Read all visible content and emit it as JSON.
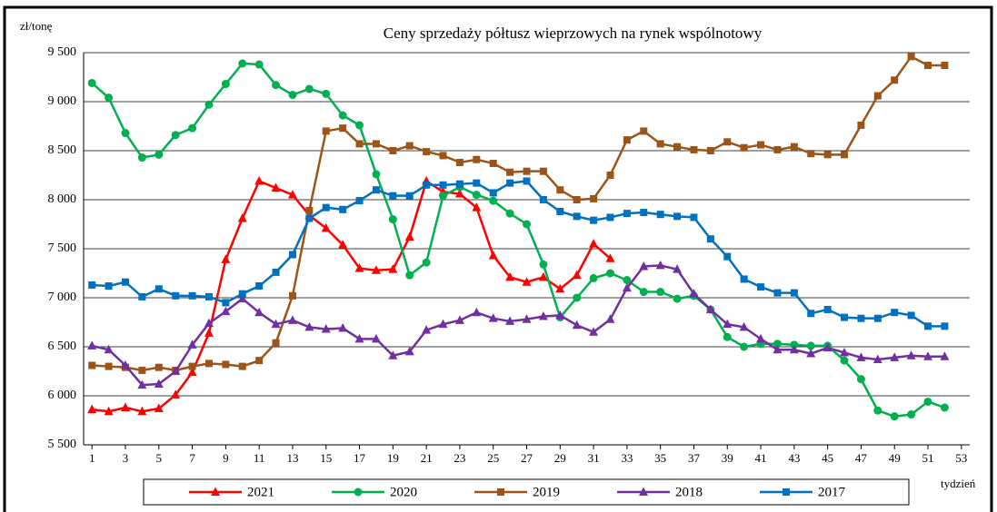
{
  "chart_data": {
    "type": "line",
    "title": "Ceny sprzedaży półtusz wieprzowych na rynek wspólnotowy",
    "y_label": "zł/tonę",
    "x_label": "tydzień",
    "x": [
      1,
      2,
      3,
      4,
      5,
      6,
      7,
      8,
      9,
      10,
      11,
      12,
      13,
      14,
      15,
      16,
      17,
      18,
      19,
      20,
      21,
      22,
      23,
      24,
      25,
      26,
      27,
      28,
      29,
      30,
      31,
      32,
      33,
      34,
      35,
      36,
      37,
      38,
      39,
      40,
      41,
      42,
      43,
      44,
      45,
      46,
      47,
      48,
      49,
      50,
      51,
      52
    ],
    "xlim": [
      0.5,
      53.5
    ],
    "xticks": [
      1,
      3,
      5,
      7,
      9,
      11,
      13,
      15,
      17,
      19,
      21,
      23,
      25,
      27,
      29,
      31,
      33,
      35,
      37,
      39,
      41,
      43,
      45,
      47,
      49,
      51,
      53
    ],
    "ylim": [
      5500,
      9500
    ],
    "yticks": [
      {
        "value": 5500,
        "label": "5 500"
      },
      {
        "value": 6000,
        "label": "6 000"
      },
      {
        "value": 6500,
        "label": "6 500"
      },
      {
        "value": 7000,
        "label": "7 000"
      },
      {
        "value": 7500,
        "label": "7 500"
      },
      {
        "value": 8000,
        "label": "8 000"
      },
      {
        "value": 8500,
        "label": "8 500"
      },
      {
        "value": 9000,
        "label": "9 000"
      },
      {
        "value": 9500,
        "label": "9 500"
      }
    ],
    "grid": true,
    "legend": "bottom",
    "series": [
      {
        "name": "2021",
        "color": "#ff0000",
        "marker": "triangle",
        "values": [
          5860,
          5840,
          5880,
          5840,
          5870,
          6010,
          6240,
          6640,
          7390,
          7810,
          8190,
          8120,
          8050,
          7840,
          7710,
          7540,
          7300,
          7280,
          7290,
          7620,
          8190,
          8080,
          8060,
          7920,
          7430,
          7210,
          7160,
          7210,
          7090,
          7230,
          7550,
          7400,
          null,
          null,
          null,
          null,
          null,
          null,
          null,
          null,
          null,
          null,
          null,
          null,
          null,
          null,
          null,
          null,
          null,
          null,
          null,
          null
        ]
      },
      {
        "name": "2020",
        "color": "#00b050",
        "marker": "circle",
        "values": [
          9190,
          9040,
          8680,
          8430,
          8460,
          8660,
          8730,
          8970,
          9180,
          9390,
          9380,
          9170,
          9070,
          9130,
          9080,
          8860,
          8760,
          8260,
          7800,
          7230,
          7360,
          8040,
          8130,
          8050,
          7990,
          7860,
          7750,
          7340,
          6800,
          7000,
          7200,
          7250,
          7180,
          7060,
          7060,
          6990,
          7020,
          6880,
          6600,
          6500,
          6530,
          6530,
          6520,
          6510,
          6510,
          6360,
          6170,
          5850,
          5790,
          5810,
          5940,
          5880
        ]
      },
      {
        "name": "2019",
        "color": "#9c5418",
        "marker": "square",
        "values": [
          6310,
          6300,
          6290,
          6260,
          6290,
          6260,
          6300,
          6330,
          6320,
          6300,
          6360,
          6540,
          7020,
          7890,
          8700,
          8730,
          8570,
          8570,
          8500,
          8550,
          8490,
          8450,
          8380,
          8410,
          8370,
          8280,
          8290,
          8290,
          8100,
          8000,
          8010,
          8250,
          8610,
          8700,
          8570,
          8540,
          8510,
          8500,
          8590,
          8530,
          8560,
          8510,
          8540,
          8470,
          8460,
          8460,
          8760,
          9060,
          9220,
          9460,
          9370,
          9370
        ]
      },
      {
        "name": "2018",
        "color": "#7030a0",
        "marker": "triangle",
        "values": [
          6510,
          6470,
          6310,
          6110,
          6120,
          6250,
          6520,
          6740,
          6860,
          6990,
          6850,
          6730,
          6770,
          6700,
          6680,
          6690,
          6580,
          6580,
          6410,
          6450,
          6670,
          6730,
          6770,
          6850,
          6790,
          6760,
          6780,
          6810,
          6820,
          6720,
          6650,
          6780,
          7100,
          7320,
          7330,
          7290,
          7040,
          6880,
          6730,
          6700,
          6580,
          6470,
          6470,
          6430,
          6490,
          6440,
          6390,
          6370,
          6390,
          6410,
          6400,
          6400
        ]
      },
      {
        "name": "2017",
        "color": "#0070c0",
        "marker": "square",
        "values": [
          7130,
          7120,
          7160,
          7010,
          7090,
          7020,
          7020,
          7010,
          6950,
          7040,
          7120,
          7260,
          7440,
          7810,
          7920,
          7900,
          7990,
          8100,
          8040,
          8040,
          8150,
          8150,
          8160,
          8170,
          8070,
          8170,
          8190,
          8000,
          7880,
          7830,
          7790,
          7820,
          7860,
          7870,
          7850,
          7830,
          7820,
          7600,
          7420,
          7190,
          7110,
          7050,
          7050,
          6840,
          6880,
          6800,
          6790,
          6790,
          6850,
          6820,
          6710,
          6710
        ]
      }
    ]
  }
}
